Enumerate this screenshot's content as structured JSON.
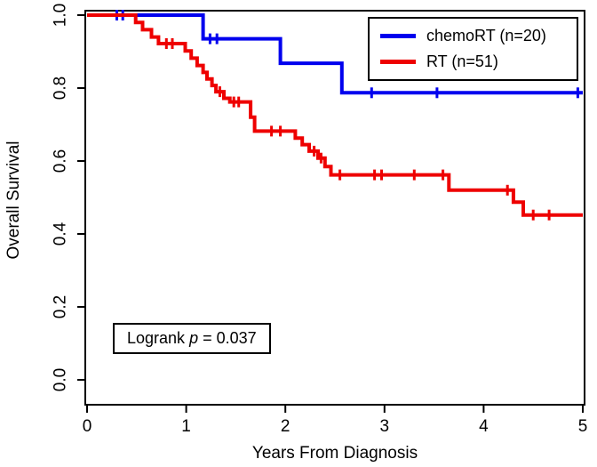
{
  "figure": {
    "annotation": {
      "prefix": "Logrank ",
      "italic_term": "p",
      "suffix": " = 0.037"
    }
  },
  "chart_data": {
    "type": "line",
    "variant": "kaplan_meier_step",
    "title": "",
    "xlabel": "Years From Diagnosis",
    "ylabel": "Overall Survival",
    "xlim": [
      0,
      5
    ],
    "ylim": [
      0,
      1
    ],
    "xticks": [
      0,
      1,
      2,
      3,
      4,
      5
    ],
    "xtick_labels": [
      "0",
      "1",
      "2",
      "3",
      "4",
      "5"
    ],
    "yticks": [
      0,
      0.2,
      0.4,
      0.6,
      0.8,
      1.0
    ],
    "ytick_labels": [
      "0.0",
      "0.2",
      "0.4",
      "0.6",
      "0.8",
      "1.0"
    ],
    "grid": false,
    "legend_position": "top-right",
    "annotation_text": "Logrank p = 0.037",
    "series": [
      {
        "name": "chemoRT (n=20)",
        "color": "#0000EE",
        "steps": [
          [
            0,
            1.0
          ],
          [
            1.17,
            0.935
          ],
          [
            1.95,
            0.868
          ],
          [
            2.57,
            0.787
          ],
          [
            5,
            0.787
          ]
        ],
        "censors": [
          [
            0.3,
            1.0
          ],
          [
            0.36,
            1.0
          ],
          [
            1.24,
            0.935
          ],
          [
            1.31,
            0.935
          ],
          [
            2.87,
            0.787
          ],
          [
            3.53,
            0.787
          ],
          [
            4.95,
            0.787
          ]
        ]
      },
      {
        "name": "RT (n=51)",
        "color": "#EE0000",
        "steps": [
          [
            0,
            1.0
          ],
          [
            0.49,
            0.98
          ],
          [
            0.56,
            0.96
          ],
          [
            0.65,
            0.94
          ],
          [
            0.72,
            0.922
          ],
          [
            0.99,
            0.902
          ],
          [
            1.05,
            0.882
          ],
          [
            1.11,
            0.862
          ],
          [
            1.17,
            0.843
          ],
          [
            1.21,
            0.825
          ],
          [
            1.26,
            0.807
          ],
          [
            1.3,
            0.79
          ],
          [
            1.38,
            0.772
          ],
          [
            1.44,
            0.762
          ],
          [
            1.65,
            0.72
          ],
          [
            1.69,
            0.682
          ],
          [
            2.1,
            0.663
          ],
          [
            2.17,
            0.645
          ],
          [
            2.24,
            0.627
          ],
          [
            2.33,
            0.608
          ],
          [
            2.4,
            0.585
          ],
          [
            2.46,
            0.562
          ],
          [
            3.65,
            0.52
          ],
          [
            4.3,
            0.487
          ],
          [
            4.4,
            0.452
          ],
          [
            5,
            0.452
          ]
        ],
        "censors": [
          [
            0.8,
            0.922
          ],
          [
            0.86,
            0.922
          ],
          [
            1.34,
            0.79
          ],
          [
            1.48,
            0.762
          ],
          [
            1.53,
            0.762
          ],
          [
            1.86,
            0.682
          ],
          [
            1.95,
            0.682
          ],
          [
            2.29,
            0.627
          ],
          [
            2.36,
            0.608
          ],
          [
            2.55,
            0.562
          ],
          [
            2.9,
            0.562
          ],
          [
            2.97,
            0.562
          ],
          [
            3.3,
            0.562
          ],
          [
            3.59,
            0.562
          ],
          [
            4.24,
            0.52
          ],
          [
            4.5,
            0.452
          ],
          [
            4.66,
            0.452
          ]
        ]
      }
    ]
  }
}
